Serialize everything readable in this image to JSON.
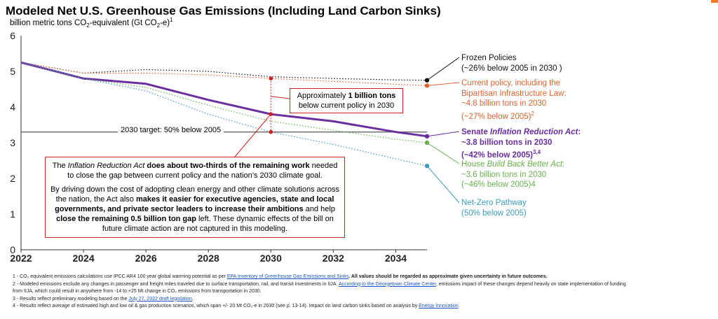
{
  "title": "Modeled Net U.S. Greenhouse Gas Emissions (Including Land Carbon Sinks)",
  "subtitle": {
    "part1": "billion metric tons CO",
    "sub1": "2",
    "part2": "-equivalent (Gt CO",
    "sub2": "2",
    "part3": "-e)",
    "sup": "1"
  },
  "colors": {
    "frozen": "#111111",
    "current": "#e0632f",
    "senate": "#6a2f9e",
    "house": "#6ab04c",
    "netzero": "#3a9bbf",
    "target": "#666666",
    "callout": "#cc2222",
    "accent": "#f47b20"
  },
  "chart_data": {
    "type": "line",
    "title": "Modeled Net U.S. Greenhouse Gas Emissions (Including Land Carbon Sinks)",
    "ylabel": "billion metric tons CO2-equivalent (Gt CO2-e)",
    "xlabel": "",
    "xlim": [
      2022,
      2035
    ],
    "ylim": [
      0,
      6
    ],
    "xticks": [
      2022,
      2024,
      2026,
      2028,
      2030,
      2032,
      2034
    ],
    "yticks": [
      0,
      1,
      2,
      3,
      4,
      5,
      6
    ],
    "series": [
      {
        "name": "Frozen Policies",
        "x": [
          2022,
          2024,
          2026,
          2028,
          2030,
          2032,
          2034,
          2035
        ],
        "values": [
          5.25,
          4.95,
          5.05,
          5.0,
          4.85,
          4.8,
          4.76,
          4.75
        ]
      },
      {
        "name": "Current policy",
        "x": [
          2022,
          2024,
          2026,
          2028,
          2030,
          2032,
          2034,
          2035
        ],
        "values": [
          5.25,
          4.95,
          4.95,
          4.9,
          4.8,
          4.72,
          4.64,
          4.6
        ]
      },
      {
        "name": "Senate Inflation Reduction Act",
        "x": [
          2022,
          2024,
          2026,
          2028,
          2030,
          2032,
          2034,
          2035
        ],
        "values": [
          5.25,
          4.8,
          4.65,
          4.2,
          3.8,
          3.6,
          3.3,
          3.18
        ]
      },
      {
        "name": "House Build Back Better Act",
        "x": [
          2022,
          2024,
          2026,
          2028,
          2030,
          2032,
          2034,
          2035
        ],
        "values": [
          5.25,
          4.8,
          4.55,
          4.05,
          3.6,
          3.35,
          3.1,
          3.0
        ]
      },
      {
        "name": "Net-Zero Pathway",
        "x": [
          2022,
          2024,
          2026,
          2028,
          2030,
          2032,
          2034,
          2035
        ],
        "values": [
          5.25,
          4.8,
          4.45,
          3.8,
          3.3,
          2.95,
          2.55,
          2.35
        ]
      }
    ],
    "target": {
      "value": 3.3,
      "label": "2030 target: 50% below 2005"
    },
    "grid": false,
    "legend": "right"
  },
  "labels": {
    "frozen": {
      "l1": "Frozen Policies",
      "l2": "(~26% below 2005 in 2030 )"
    },
    "current": {
      "l1": "Current policy, including the",
      "l2": "Bipartisan Infrastructure Law:",
      "l3": "~4.8 billion tons in 2030",
      "l4": "(~27% below 2005)",
      "sup": "2"
    },
    "senate": {
      "pre": "Senate ",
      "em": "Inflation Reduction Act",
      "post": ":",
      "l2": "~3.8 billion tons in 2030",
      "l3": "(~42% below 2005)",
      "sup": "3,4"
    },
    "house": {
      "pre": "House ",
      "em": "Build Back Better Act",
      "post": ":",
      "l2": "~3.6 billion tons in 2030",
      "l3": "(~46% below 2005)4"
    },
    "netzero": {
      "l1": "Net-Zero Pathway",
      "l2": "(50% below 2005)"
    }
  },
  "callout": {
    "pre": "Approximately ",
    "bold": "1 billion tons",
    "post": "below current policy in 2030"
  },
  "target_label": "2030 target: 50% below 2005",
  "note": {
    "p1_pre": "The ",
    "p1_em": "Inflation Reduction Act",
    "p1_bold": " does about two-thirds of the remaining work",
    "p1_post": " needed to close the gap between current policy and the nation’s 2030 climate goal.",
    "p2_a": "By driving down the cost of adopting clean energy and other climate solutions across the nation, the Act also ",
    "p2_b": "makes it easier for executive agencies, state and local governments, and private sector leaders to increase their ambitions",
    "p2_c": " and help ",
    "p2_d": "close the remaining 0.5 billion ton gap",
    "p2_e": " left. These dynamic effects of the bill on future climate action are not captured in this modeling."
  },
  "footnotes": {
    "f1_a": "1 - CO₂ equivalent emissions calculations use IPCC AR4 100 year global warming potential as per ",
    "f1_link": "EPA Inventory of Greenhouse Gas Emissions and Sinks",
    "f1_b": ".  All values should be regarded as approximate given uncertainty in future outcomes.",
    "f2_a": "2 - Modeled emissions exclude any changes in passenger and freight miles traveled due to surface transportation, rail, and transit investments in IIJA. ",
    "f2_link": "According to the Georgetown Climate Center",
    "f2_b": ", emissions impact of these changes depend heavily on state implementation of funding",
    "f2_c": "from IIJA, which could result in anywhere from -14 to +25 Mt change in CO₂ emissions from transportation in 2030.",
    "f3_a": "3 - Results reflect preliminary modeling based on the ",
    "f3_link": "July 27, 2022 draft legislation",
    "f3_b": ".",
    "f4_a": "4 - Results reflect average of estimated high and low oil & gas production scenarios, which span +/- 20 Mt CO₂-e in 2030 (see p. 13-14).  Impact on land carbon sinks based on analysis by ",
    "f4_link": "Energy Innovation",
    "f4_b": "."
  }
}
